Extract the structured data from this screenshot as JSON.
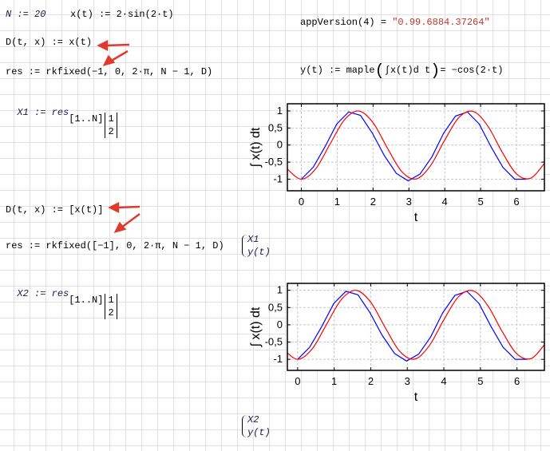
{
  "block1": {
    "n_def": "N := 20",
    "x_def": "x(t) := 2·sin(2·t)",
    "d_def": "D(t, x) := x(t)",
    "res_def": "res := rkfixed(−1, 0, 2·π, N − 1, D)",
    "x1_def": "X1 := res",
    "x1_index": "[1..N]",
    "x1_cols": [
      "1",
      "2"
    ]
  },
  "app_version": {
    "expr": "appVersion(4) = ",
    "value": "\"0.99.6884.37264\""
  },
  "y_def": {
    "lhs": "y(t) := maple",
    "integral": "∫x(t)d t",
    "result": "= −cos(2·t)"
  },
  "block2": {
    "d_def": "D(t, x) := [x(t)]",
    "res_def": "res := rkfixed([−1], 0, 2·π, N − 1, D)",
    "x2_def": "X2 := res",
    "x2_index": "[1..N]",
    "x2_cols": [
      "1",
      "2"
    ]
  },
  "legend1": [
    "X1",
    "y(t)"
  ],
  "legend2": [
    "X2",
    "y(t)"
  ],
  "colors": {
    "annotation_arrow": "#e03a2e",
    "series_rk": "#0000ff",
    "series_exact": "#ff0000",
    "string": "#c0392b"
  },
  "chart_data": [
    {
      "type": "line",
      "xlabel": "t",
      "ylabel": "∫ x(t) dt",
      "xlim": [
        -0.39,
        6.78
      ],
      "ylim": [
        -1.34,
        1.21
      ],
      "xticks": [
        "0",
        "1",
        "2",
        "3",
        "4",
        "5",
        "6"
      ],
      "yticks": [
        "1",
        "0,5",
        "0",
        "-0,5",
        "-1"
      ],
      "grid": true,
      "series": [
        {
          "name": "X1",
          "color": "#0000ff",
          "x": [
            0,
            0.33,
            0.66,
            0.99,
            1.32,
            1.65,
            1.98,
            2.31,
            2.65,
            2.98,
            3.31,
            3.64,
            3.97,
            4.3,
            4.63,
            4.96,
            5.29,
            5.62,
            5.95,
            6.28
          ],
          "y": [
            -1,
            -0.65,
            -0.05,
            0.62,
            0.97,
            0.87,
            0.35,
            -0.3,
            -0.83,
            -1.05,
            -0.85,
            -0.35,
            0.35,
            0.85,
            0.97,
            0.62,
            -0.05,
            -0.65,
            -1.0,
            -1.0
          ]
        },
        {
          "name": "y(t)",
          "color": "#ff0000",
          "x": [
            -0.4,
            0,
            0.4,
            0.8,
            1.2,
            1.6,
            2.0,
            2.4,
            2.8,
            3.2,
            3.6,
            4.0,
            4.4,
            4.8,
            5.2,
            5.6,
            6.0,
            6.4,
            6.8
          ],
          "y": [
            -0.697,
            -1,
            -0.697,
            0.029,
            0.737,
            0.998,
            0.654,
            -0.087,
            -0.776,
            -0.994,
            -0.608,
            0.146,
            0.813,
            0.984,
            0.559,
            -0.204,
            -0.844,
            -0.971,
            -0.508
          ]
        }
      ]
    },
    {
      "type": "line",
      "xlabel": "t",
      "ylabel": "∫ x(t) dt",
      "xlim": [
        -0.28,
        6.75
      ],
      "ylim": [
        -1.32,
        1.2
      ],
      "xticks": [
        "0",
        "1",
        "2",
        "3",
        "4",
        "5",
        "6"
      ],
      "yticks": [
        "1",
        "0,5",
        "0",
        "-0,5",
        "-1"
      ],
      "grid": true,
      "series": [
        {
          "name": "X2",
          "color": "#0000ff",
          "x": [
            0,
            0.33,
            0.66,
            0.99,
            1.32,
            1.65,
            1.98,
            2.31,
            2.65,
            2.98,
            3.31,
            3.64,
            3.97,
            4.3,
            4.63,
            4.96,
            5.29,
            5.62,
            5.95,
            6.28
          ],
          "y": [
            -1,
            -0.65,
            -0.05,
            0.62,
            0.97,
            0.87,
            0.35,
            -0.3,
            -0.83,
            -1.05,
            -0.85,
            -0.35,
            0.35,
            0.85,
            0.97,
            0.62,
            -0.05,
            -0.65,
            -1.0,
            -1.0
          ]
        },
        {
          "name": "y(t)",
          "color": "#ff0000",
          "x": [
            -0.4,
            0,
            0.4,
            0.8,
            1.2,
            1.6,
            2.0,
            2.4,
            2.8,
            3.2,
            3.6,
            4.0,
            4.4,
            4.8,
            5.2,
            5.6,
            6.0,
            6.4,
            6.8
          ],
          "y": [
            -0.697,
            -1,
            -0.697,
            0.029,
            0.737,
            0.998,
            0.654,
            -0.087,
            -0.776,
            -0.994,
            -0.608,
            0.146,
            0.813,
            0.984,
            0.559,
            -0.204,
            -0.844,
            -0.971,
            -0.508
          ]
        }
      ]
    }
  ]
}
